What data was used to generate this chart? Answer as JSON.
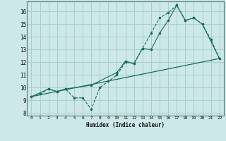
{
  "xlabel": "Humidex (Indice chaleur)",
  "bg_color": "#cce8e8",
  "grid_color": "#aacccc",
  "line_color": "#1a6b5a",
  "xlim": [
    -0.5,
    22.5
  ],
  "ylim": [
    7.8,
    16.8
  ],
  "xticks": [
    0,
    1,
    2,
    3,
    4,
    5,
    6,
    7,
    8,
    9,
    10,
    11,
    12,
    13,
    14,
    15,
    16,
    17,
    18,
    19,
    20,
    21,
    22
  ],
  "yticks": [
    8,
    9,
    10,
    11,
    12,
    13,
    14,
    15,
    16
  ],
  "line1_x": [
    0,
    1,
    2,
    3,
    4,
    5,
    6,
    7,
    8,
    9,
    10,
    11,
    12,
    13,
    14,
    15,
    16,
    17,
    18,
    19,
    20,
    21,
    22
  ],
  "line1_y": [
    9.3,
    9.5,
    9.9,
    9.7,
    9.9,
    9.2,
    9.2,
    8.3,
    10.0,
    10.5,
    11.0,
    12.0,
    11.9,
    13.1,
    14.3,
    15.5,
    15.9,
    16.5,
    15.3,
    15.5,
    15.0,
    13.8,
    12.3
  ],
  "line2_x": [
    0,
    22
  ],
  "line2_y": [
    9.3,
    12.3
  ],
  "line3_x": [
    0,
    2,
    3,
    4,
    7,
    10,
    11,
    12,
    13,
    14,
    15,
    16,
    17,
    18,
    19,
    20,
    22
  ],
  "line3_y": [
    9.3,
    9.9,
    9.7,
    9.9,
    10.2,
    11.2,
    12.1,
    11.9,
    13.1,
    13.0,
    14.3,
    15.3,
    16.5,
    15.3,
    15.5,
    15.0,
    12.3
  ]
}
